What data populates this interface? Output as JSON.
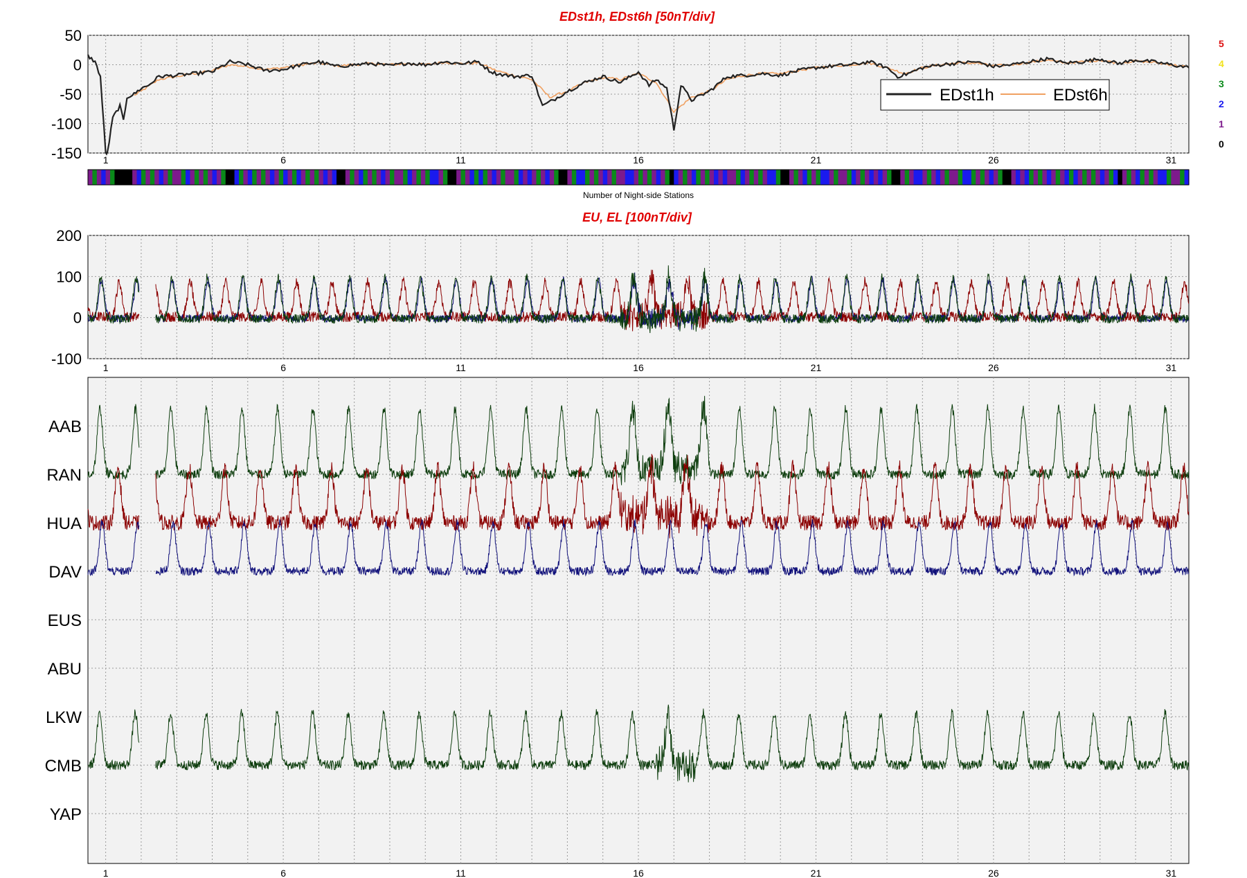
{
  "chart_data": [
    {
      "type": "line",
      "title": "EDst1h, EDst6h [50nT/div]",
      "ylim": [
        -150,
        50
      ],
      "yticks": [
        50,
        0,
        -50,
        -100,
        -150
      ],
      "xlim": [
        0.5,
        31.5
      ],
      "xticks": [
        1,
        6,
        11,
        16,
        21,
        26,
        31
      ],
      "grid": true,
      "legend_position": "upper-right",
      "series": [
        {
          "name": "EDst1h",
          "color": "#222222",
          "x": [
            0.5,
            0.7,
            0.85,
            1.0,
            1.05,
            1.2,
            1.4,
            1.5,
            1.6,
            1.8,
            2.0,
            2.2,
            2.5,
            3.0,
            3.5,
            4.0,
            4.5,
            5.0,
            5.5,
            6.0,
            6.5,
            7.0,
            7.5,
            8.0,
            8.5,
            9.0,
            9.5,
            10.0,
            10.5,
            11.0,
            11.5,
            11.8,
            12.0,
            12.5,
            13.0,
            13.3,
            13.6,
            14.0,
            14.5,
            15.0,
            15.5,
            16.0,
            16.3,
            16.5,
            16.8,
            17.0,
            17.2,
            17.5,
            18.0,
            18.5,
            19.0,
            19.5,
            20.0,
            20.5,
            21.0,
            21.5,
            22.0,
            22.5,
            23.0,
            23.3,
            23.6,
            24.0,
            24.5,
            25.0,
            25.5,
            26.0,
            26.5,
            27.0,
            27.5,
            28.0,
            28.5,
            29.0,
            29.5,
            30.0,
            30.5,
            31.0,
            31.5
          ],
          "y": [
            15,
            5,
            -20,
            -150,
            -150,
            -90,
            -70,
            -95,
            -55,
            -50,
            -40,
            -35,
            -20,
            -18,
            -15,
            -12,
            5,
            0,
            -10,
            -8,
            0,
            5,
            -3,
            0,
            2,
            -2,
            3,
            0,
            5,
            2,
            5,
            -10,
            -15,
            -20,
            -18,
            -70,
            -60,
            -45,
            -30,
            -20,
            -30,
            -12,
            -35,
            -25,
            -40,
            -110,
            -35,
            -60,
            -45,
            -20,
            -18,
            -15,
            -18,
            -10,
            -5,
            -2,
            0,
            5,
            -5,
            -20,
            -15,
            -5,
            0,
            3,
            5,
            -3,
            0,
            5,
            10,
            3,
            5,
            10,
            2,
            8,
            5,
            0,
            -5
          ]
        },
        {
          "name": "EDst6h",
          "color": "#f0a060",
          "x": [
            1.8,
            2.0,
            2.5,
            3.0,
            3.5,
            4.0,
            4.5,
            5.0,
            5.5,
            6.0,
            6.5,
            7.0,
            7.5,
            8.0,
            8.5,
            9.0,
            9.5,
            10.0,
            10.5,
            11.0,
            11.5,
            12.0,
            12.5,
            13.0,
            13.5,
            14.0,
            14.5,
            15.0,
            15.5,
            16.0,
            16.5,
            17.0,
            17.5,
            18.0,
            18.5,
            19.0,
            19.5,
            20.0,
            20.5,
            21.0,
            21.5,
            22.0,
            22.5,
            23.0,
            23.5,
            24.0,
            24.5,
            25.0,
            25.5,
            26.0,
            26.5,
            27.0,
            27.5,
            28.0,
            28.5,
            29.0,
            29.5,
            30.0,
            30.5,
            31.0,
            31.5
          ],
          "y": [
            -52,
            -45,
            -25,
            -20,
            -15,
            -10,
            0,
            -3,
            -8,
            -5,
            0,
            3,
            -2,
            0,
            2,
            0,
            2,
            0,
            4,
            2,
            3,
            -10,
            -18,
            -25,
            -55,
            -45,
            -30,
            -22,
            -25,
            -15,
            -30,
            -80,
            -55,
            -45,
            -25,
            -18,
            -15,
            -15,
            -10,
            -5,
            -2,
            0,
            3,
            -5,
            -15,
            -5,
            0,
            3,
            3,
            -2,
            0,
            4,
            8,
            3,
            5,
            8,
            3,
            6,
            4,
            0,
            -4
          ]
        }
      ]
    },
    {
      "type": "bar",
      "xlabel": "Number of Night-side Stations",
      "legend_counts": [
        "5",
        "4",
        "3",
        "2",
        "1",
        "0"
      ],
      "count_colors": {
        "0": "#000000",
        "1": "#7d1a8c",
        "2": "#1a1aee",
        "3": "#0a8a1a",
        "4": "#f2e21a",
        "5": "#dd1010"
      }
    },
    {
      "type": "line",
      "title": "EU, EL   [100nT/div]",
      "ylim": [
        -100,
        200
      ],
      "yticks": [
        200,
        100,
        0,
        -100
      ],
      "xlim": [
        0.5,
        31.5
      ],
      "xticks": [
        1,
        6,
        11,
        16,
        21,
        26,
        31
      ],
      "grid": true,
      "colors": {
        "red": "#8b0000",
        "green": "#0d3d0d",
        "blue": "#10107a"
      }
    },
    {
      "type": "line",
      "stations": [
        "AAB",
        "RAN",
        "HUA",
        "DAV",
        "EUS",
        "ABU",
        "LKW",
        "CMB",
        "YAP"
      ],
      "xlim": [
        0.5,
        31.5
      ],
      "xticks": [
        1,
        6,
        11,
        16,
        21,
        26,
        31
      ],
      "grid": true
    }
  ]
}
